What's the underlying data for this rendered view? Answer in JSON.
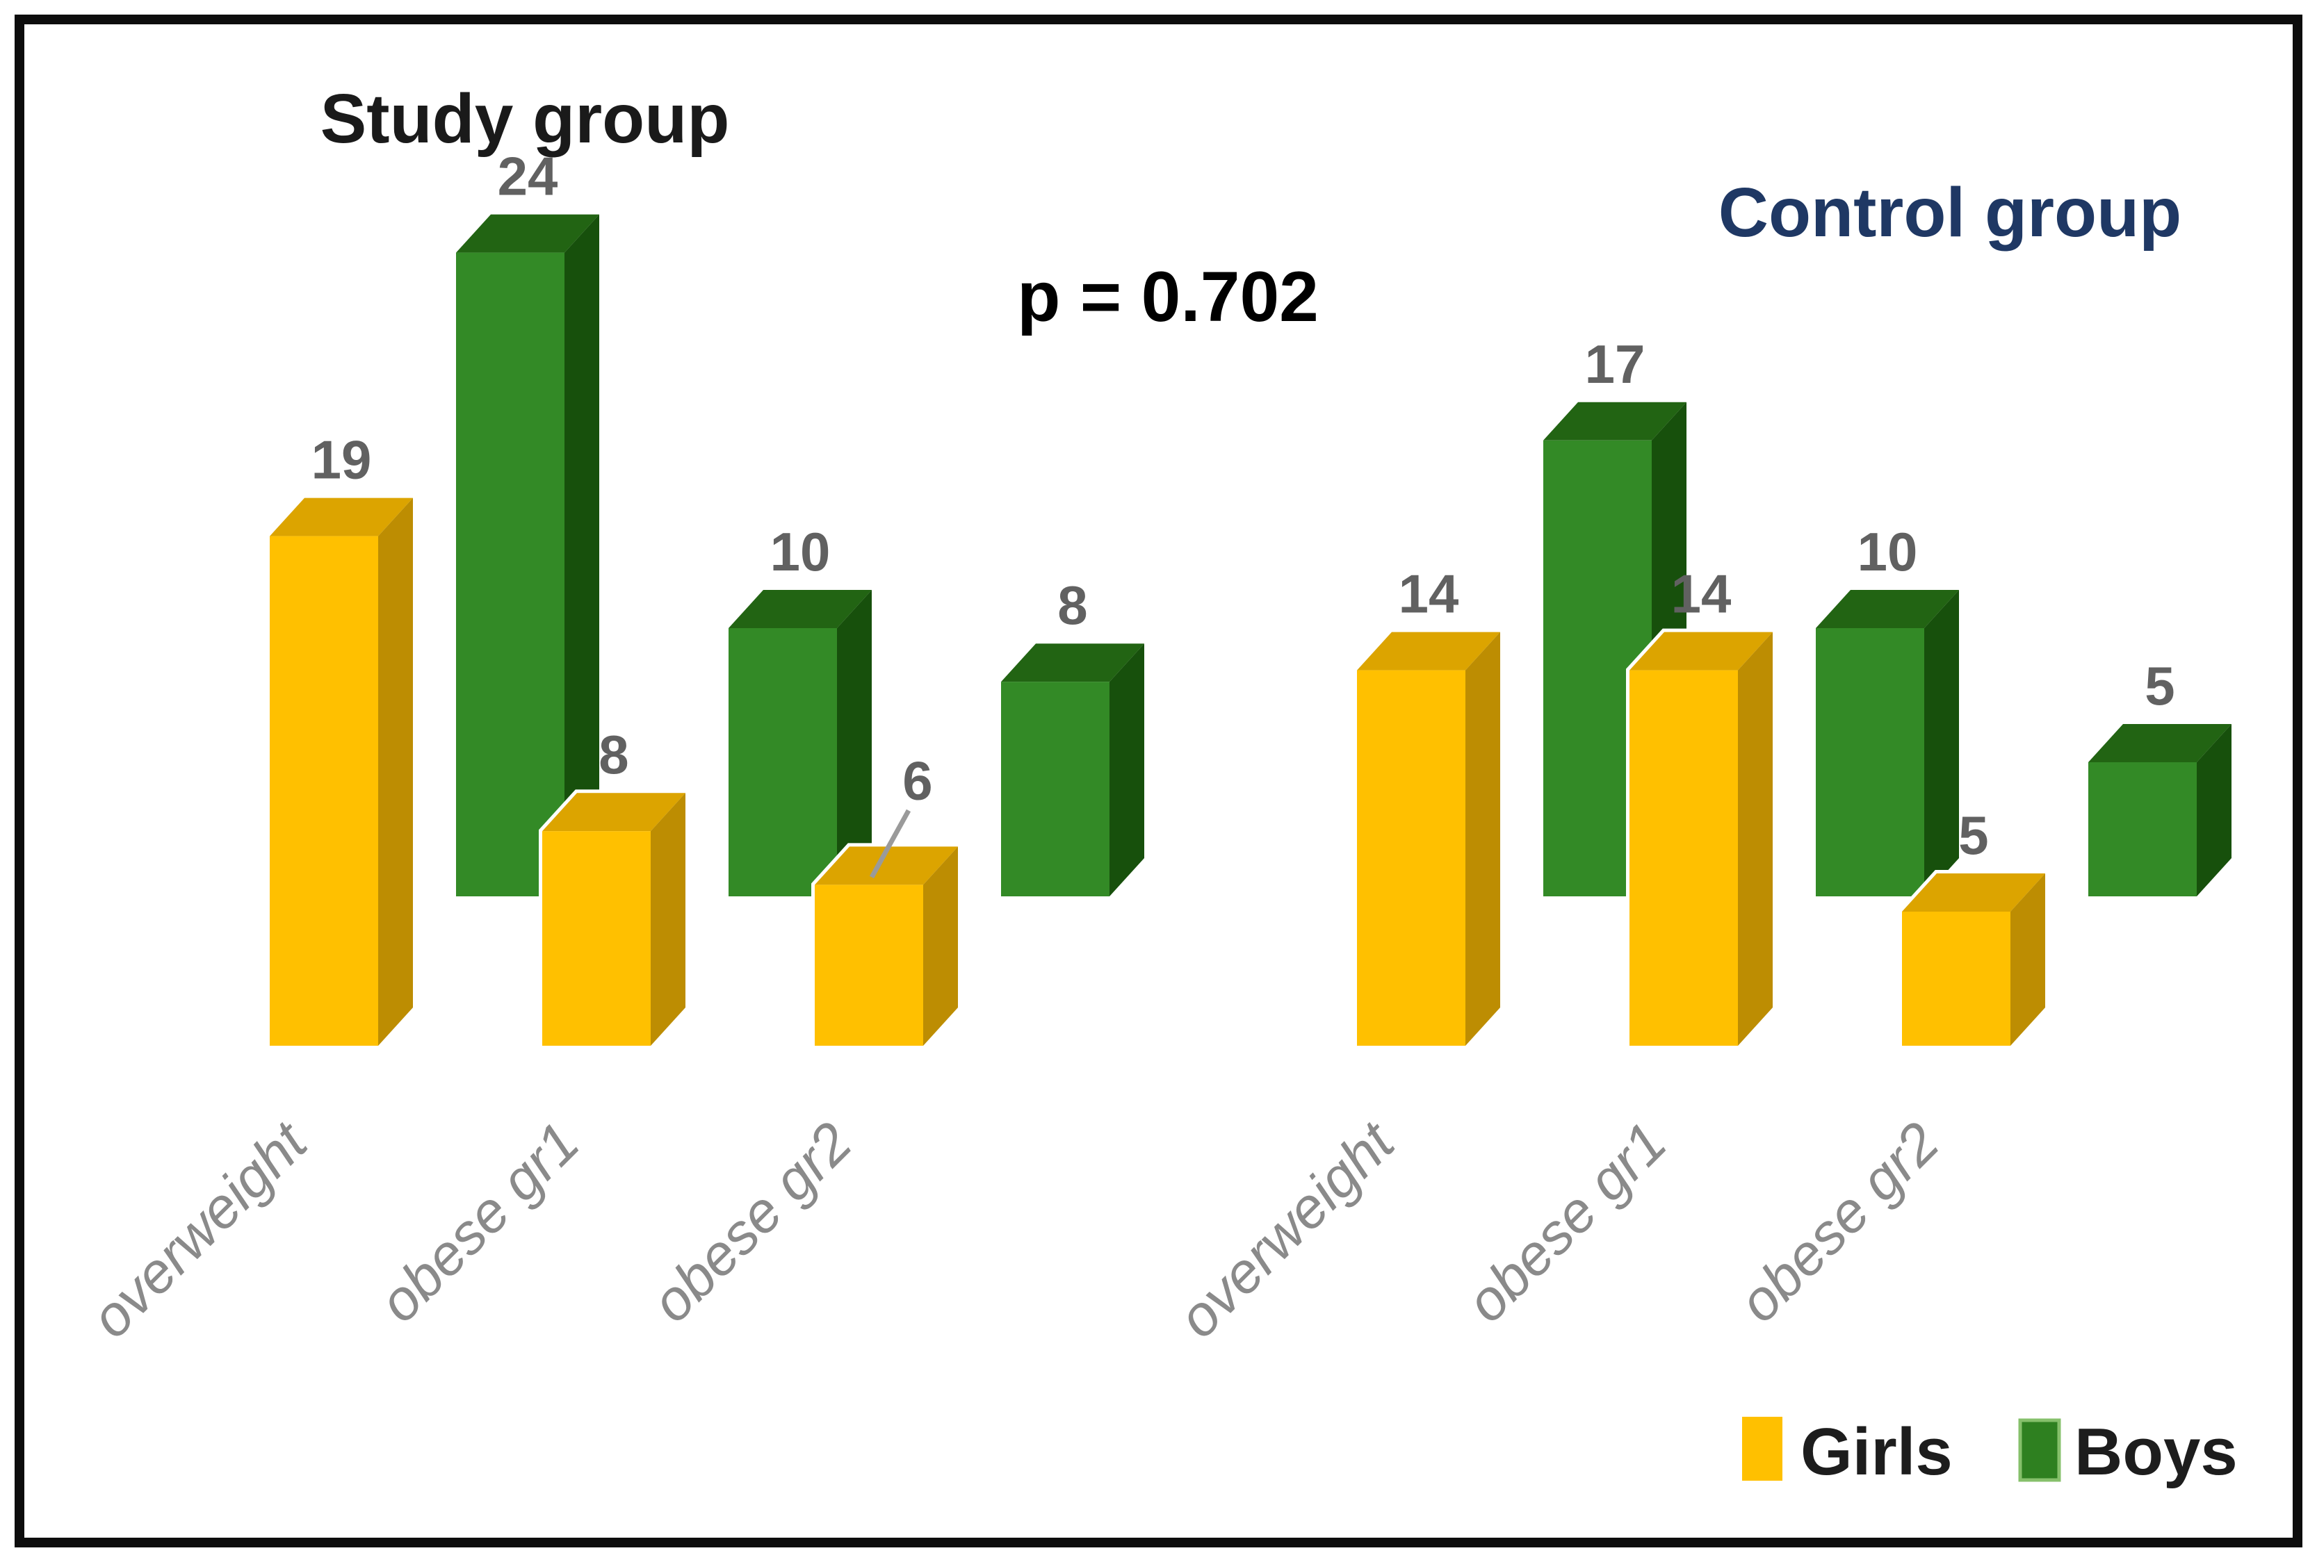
{
  "chart_data": {
    "type": "bar",
    "style": "3d-clustered-column",
    "title": "",
    "annotation": "p = 0.702",
    "categories": [
      "overweight",
      "obese gr1",
      "obese gr2"
    ],
    "series": [
      {
        "name": "Girls",
        "color": "#FFC000",
        "color_top": "#DCA400",
        "color_side": "#BD8D02"
      },
      {
        "name": "Boys",
        "color": "#338A26",
        "color_top": "#226413",
        "color_side": "#17500C"
      }
    ],
    "groups": [
      {
        "title": "Study group",
        "values": {
          "Girls": [
            19,
            8,
            6
          ],
          "Boys": [
            24,
            10,
            8
          ]
        }
      },
      {
        "title": "Control group",
        "values": {
          "Girls": [
            14,
            14,
            5
          ],
          "Boys": [
            17,
            10,
            5
          ]
        }
      }
    ],
    "data_labels_shown": true,
    "leader_lines": [
      {
        "group": 0,
        "series": "Girls",
        "category": 2
      }
    ],
    "legend": {
      "position": "bottom-right",
      "entries": [
        "Girls",
        "Boys"
      ]
    },
    "axes": {
      "y_axis_shown": false,
      "x_axis_shown": false,
      "gridlines": false
    }
  },
  "colors": {
    "frame_border": "#0d0d0d",
    "background": "#ffffff",
    "study_title": "#1a1a1a",
    "control_title": "#1f3864",
    "annotation": "#000000",
    "value_label": "#616161",
    "category_label": "#8a8a8a",
    "legend_text": "#1d1d1d",
    "leader_line": "#9a9a9a"
  }
}
